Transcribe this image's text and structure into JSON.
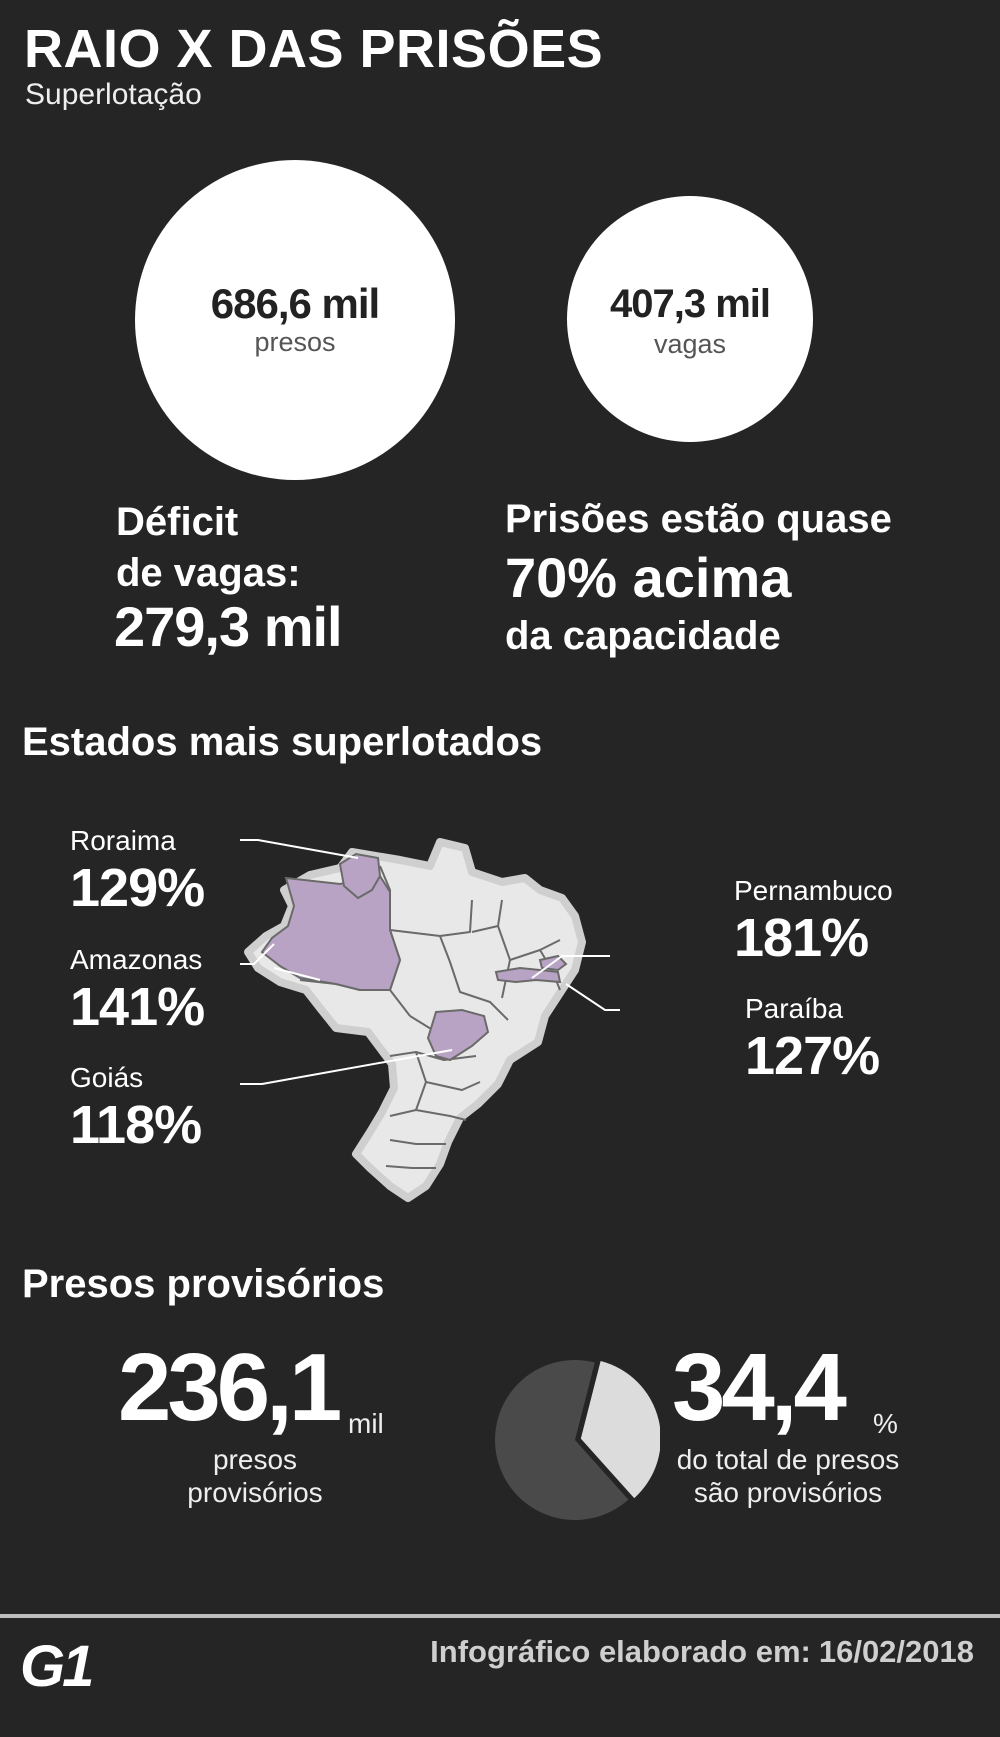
{
  "header": {
    "title": "RAIO X DAS PRISÕES",
    "subtitle": "Superlotação"
  },
  "overview": {
    "presos": {
      "value": "686,6 mil",
      "unit": "presos"
    },
    "vagas": {
      "value": "407,3 mil",
      "unit": "vagas"
    },
    "deficit": {
      "label_line1": "Déficit",
      "label_line2": "de vagas:",
      "value": "279,3 mil"
    },
    "capacity": {
      "line1": "Prisões estão quase",
      "line2": "70% acima",
      "line3": "da capacidade"
    }
  },
  "states_section": {
    "title": "Estados mais superlotados",
    "states": [
      {
        "name": "Roraima",
        "pct": "129%"
      },
      {
        "name": "Amazonas",
        "pct": "141%"
      },
      {
        "name": "Goiás",
        "pct": "118%"
      },
      {
        "name": "Pernambuco",
        "pct": "181%"
      },
      {
        "name": "Paraíba",
        "pct": "127%"
      }
    ],
    "colors": {
      "highlight": "#b9a3c5",
      "map_fill": "#e8e8e8",
      "map_border": "#cfcfcf",
      "map_lines": "#6a6a6a"
    }
  },
  "provisional_section": {
    "title": "Presos provisórios",
    "count": {
      "value": "236,1",
      "unit": "mil",
      "label_line1": "presos",
      "label_line2": "provisórios"
    },
    "share": {
      "value": "34,4",
      "unit": "%",
      "label_line1": "do total de presos",
      "label_line2": "são provisórios",
      "fraction": 0.344
    },
    "colors": {
      "provisional": "#dcdcdc",
      "others": "#4a4a4a"
    }
  },
  "footer": {
    "logo": "G1",
    "label": "Infográfico elaborado em:",
    "date": "16/02/2018"
  }
}
